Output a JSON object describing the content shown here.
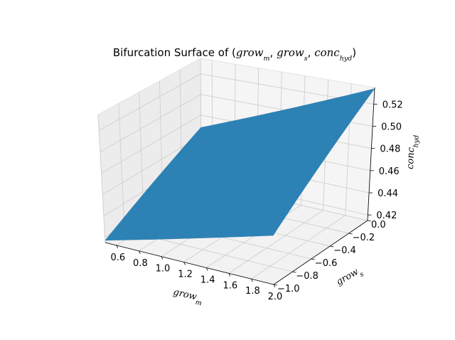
{
  "chart_data": {
    "type": "surface3d",
    "title": {
      "prefix": "Bifurcation Surface of (",
      "suffix": ")",
      "terms": [
        {
          "base": "grow",
          "sub": "m"
        },
        {
          "base": "grow",
          "sub": "s"
        },
        {
          "base": "conc",
          "sub": "hyd"
        }
      ]
    },
    "xlabel": {
      "base": "grow",
      "sub": "m"
    },
    "ylabel": {
      "base": "grow",
      "sub": "s"
    },
    "zlabel": {
      "base": "conc",
      "sub": "hyd"
    },
    "xlim": [
      0.5,
      2.0
    ],
    "ylim": [
      -1.0,
      0.0
    ],
    "zlim": [
      0.415,
      0.535
    ],
    "xticks": [
      "0.6",
      "0.8",
      "1.0",
      "1.2",
      "1.4",
      "1.6",
      "1.8",
      "2.0"
    ],
    "yticks": [
      "−1.0",
      "−0.8",
      "−0.6",
      "−0.4",
      "−0.2",
      "0.0"
    ],
    "zticks": [
      "0.42",
      "0.44",
      "0.46",
      "0.48",
      "0.50",
      "0.52"
    ],
    "corners": [
      {
        "x": 0.5,
        "y": -1.0,
        "z": 0.417
      },
      {
        "x": 2.0,
        "y": -1.0,
        "z": 0.459
      },
      {
        "x": 0.5,
        "y": 0.0,
        "z": 0.468
      },
      {
        "x": 2.0,
        "y": 0.0,
        "z": 0.534
      }
    ],
    "surface_color": "#2d82b5",
    "grid": true,
    "pane_color": "#f2f2f2"
  }
}
